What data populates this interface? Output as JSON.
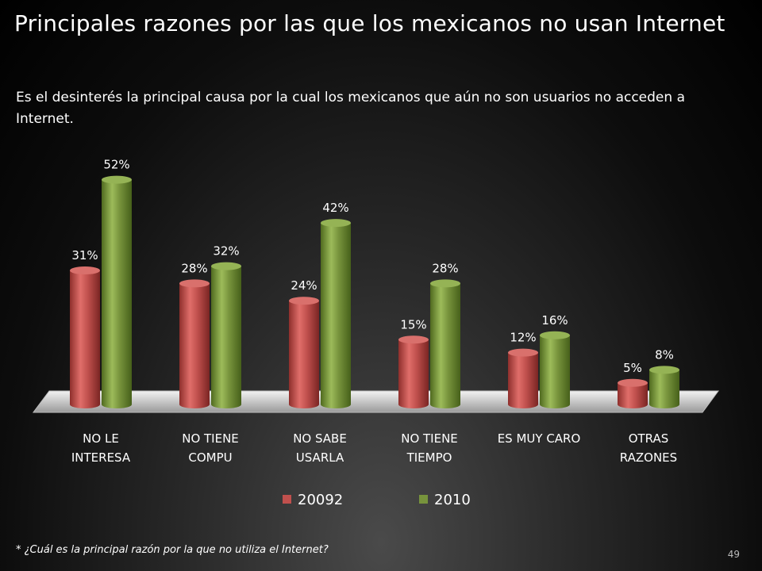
{
  "slide": {
    "title": "Principales razones por las que los mexicanos no usan Internet",
    "subtitle": "Es el desinterés la principal causa por la cual los mexicanos que aún no son usuarios no acceden a Internet.",
    "footnote": "* ¿Cuál es la principal razón por la que no utiliza el Internet?",
    "page_number": "49"
  },
  "chart_data": {
    "type": "bar",
    "categories": [
      [
        "NO LE",
        "INTERESA"
      ],
      [
        "NO TIENE",
        "COMPU"
      ],
      [
        "NO SABE",
        "USARLA"
      ],
      [
        "NO TIENE",
        "TIEMPO"
      ],
      [
        "ES MUY CARO"
      ],
      [
        "OTRAS",
        "RAZONES"
      ]
    ],
    "series": [
      {
        "name": "20092",
        "color": "#c0504d",
        "values": [
          31,
          28,
          24,
          15,
          12,
          5
        ],
        "labels": [
          "31%",
          "28%",
          "24%",
          "15%",
          "12%",
          "5%"
        ]
      },
      {
        "name": "2010",
        "color": "#77933c",
        "values": [
          52,
          32,
          42,
          28,
          16,
          8
        ],
        "labels": [
          "52%",
          "32%",
          "42%",
          "28%",
          "16%",
          "8%"
        ]
      }
    ],
    "ylim": [
      0,
      60
    ],
    "legend_position": "bottom",
    "style": "3d-cylinder"
  }
}
